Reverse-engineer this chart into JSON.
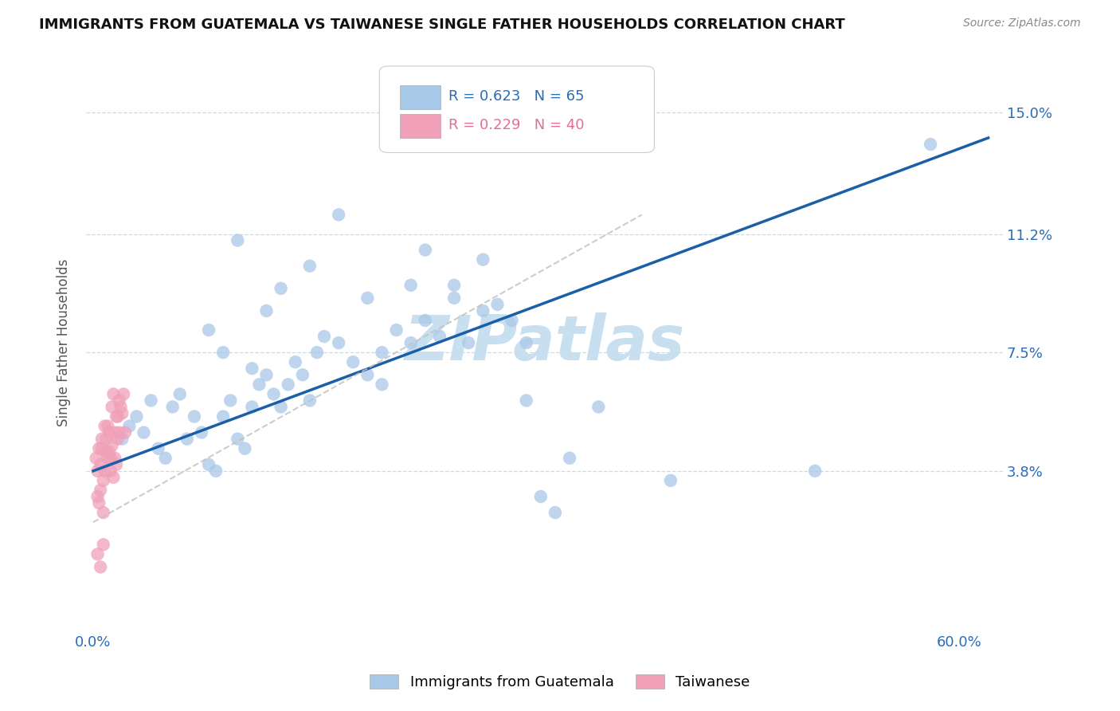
{
  "title": "IMMIGRANTS FROM GUATEMALA VS TAIWANESE SINGLE FATHER HOUSEHOLDS CORRELATION CHART",
  "source": "Source: ZipAtlas.com",
  "xlabel_blue": "Immigrants from Guatemala",
  "xlabel_pink": "Taiwanese",
  "ylabel": "Single Father Households",
  "xlim": [
    -0.005,
    0.63
  ],
  "ylim": [
    -0.012,
    0.168
  ],
  "x_tick_positions": [
    0.0,
    0.1,
    0.2,
    0.3,
    0.4,
    0.5,
    0.6
  ],
  "x_tick_labels": [
    "0.0%",
    "",
    "",
    "",
    "",
    "",
    "60.0%"
  ],
  "y_tick_positions": [
    0.0,
    0.038,
    0.075,
    0.112,
    0.15
  ],
  "y_tick_labels": [
    "",
    "3.8%",
    "7.5%",
    "11.2%",
    "15.0%"
  ],
  "legend_r_blue": "R = 0.623",
  "legend_n_blue": "N = 65",
  "legend_r_pink": "R = 0.229",
  "legend_n_pink": "N = 40",
  "blue_scatter_color": "#a8c8e8",
  "blue_line_color": "#1a5fa8",
  "pink_scatter_color": "#f0a0b8",
  "pink_line_color": "#c0c0c0",
  "watermark_color": "#c8dff0",
  "grid_color": "#d0d8e0",
  "blue_scatter_x": [
    0.02,
    0.025,
    0.03,
    0.035,
    0.04,
    0.045,
    0.05,
    0.055,
    0.06,
    0.065,
    0.07,
    0.075,
    0.08,
    0.085,
    0.09,
    0.095,
    0.1,
    0.105,
    0.11,
    0.115,
    0.12,
    0.125,
    0.13,
    0.135,
    0.14,
    0.145,
    0.15,
    0.155,
    0.16,
    0.17,
    0.18,
    0.19,
    0.2,
    0.21,
    0.22,
    0.23,
    0.24,
    0.25,
    0.26,
    0.27,
    0.28,
    0.29,
    0.3,
    0.31,
    0.32,
    0.33,
    0.35,
    0.3,
    0.22,
    0.5,
    0.58,
    0.2,
    0.17,
    0.19,
    0.23,
    0.25,
    0.27,
    0.13,
    0.15,
    0.1,
    0.12,
    0.08,
    0.09,
    0.11,
    0.4
  ],
  "blue_scatter_y": [
    0.048,
    0.052,
    0.055,
    0.05,
    0.06,
    0.045,
    0.042,
    0.058,
    0.062,
    0.048,
    0.055,
    0.05,
    0.04,
    0.038,
    0.055,
    0.06,
    0.048,
    0.045,
    0.058,
    0.065,
    0.068,
    0.062,
    0.058,
    0.065,
    0.072,
    0.068,
    0.06,
    0.075,
    0.08,
    0.078,
    0.072,
    0.068,
    0.075,
    0.082,
    0.078,
    0.085,
    0.08,
    0.092,
    0.078,
    0.088,
    0.09,
    0.085,
    0.078,
    0.03,
    0.025,
    0.042,
    0.058,
    0.06,
    0.096,
    0.038,
    0.14,
    0.065,
    0.118,
    0.092,
    0.107,
    0.096,
    0.104,
    0.095,
    0.102,
    0.11,
    0.088,
    0.082,
    0.075,
    0.07,
    0.035
  ],
  "pink_scatter_x": [
    0.002,
    0.003,
    0.004,
    0.005,
    0.006,
    0.007,
    0.008,
    0.009,
    0.01,
    0.011,
    0.012,
    0.013,
    0.014,
    0.015,
    0.016,
    0.017,
    0.018,
    0.003,
    0.004,
    0.005,
    0.006,
    0.007,
    0.008,
    0.009,
    0.01,
    0.011,
    0.012,
    0.013,
    0.014,
    0.015,
    0.016,
    0.017,
    0.018,
    0.019,
    0.02,
    0.021,
    0.022,
    0.003,
    0.005,
    0.007
  ],
  "pink_scatter_y": [
    0.042,
    0.038,
    0.045,
    0.04,
    0.048,
    0.035,
    0.052,
    0.044,
    0.042,
    0.05,
    0.038,
    0.046,
    0.036,
    0.042,
    0.04,
    0.055,
    0.05,
    0.03,
    0.028,
    0.032,
    0.045,
    0.025,
    0.038,
    0.048,
    0.052,
    0.044,
    0.042,
    0.058,
    0.062,
    0.05,
    0.055,
    0.048,
    0.06,
    0.058,
    0.056,
    0.062,
    0.05,
    0.012,
    0.008,
    0.015
  ],
  "blue_line_x0": 0.0,
  "blue_line_x1": 0.62,
  "blue_line_y0": 0.038,
  "blue_line_y1": 0.142,
  "pink_line_x0": 0.0,
  "pink_line_x1": 0.38,
  "pink_line_y0": 0.022,
  "pink_line_y1": 0.118
}
